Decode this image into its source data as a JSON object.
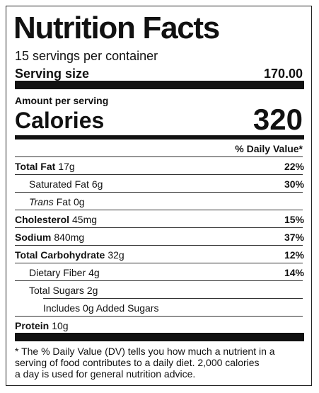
{
  "title": "Nutrition Facts",
  "servings": "15 servings per container",
  "serving_size": {
    "label": "Serving size",
    "value": "170.00"
  },
  "amount_per_serving": "Amount per serving",
  "calories": {
    "label": "Calories",
    "value": "320"
  },
  "daily_value_header": "% Daily Value*",
  "nutrients": [
    {
      "label": "Total Fat",
      "amount": "17g",
      "dv": "22%"
    },
    {
      "label": "Saturated Fat",
      "amount": "6g",
      "dv": "30%"
    },
    {
      "label_italic": "Trans",
      "label": "Fat",
      "amount": "0g"
    },
    {
      "label": "Cholesterol",
      "amount": "45mg",
      "dv": "15%"
    },
    {
      "label": "Sodium",
      "amount": "840mg",
      "dv": "37%"
    },
    {
      "label": "Total Carbohydrate",
      "amount": "32g",
      "dv": "12%"
    },
    {
      "label": "Dietary Fiber",
      "amount": "4g",
      "dv": "14%"
    },
    {
      "label": "Total Sugars",
      "amount": "2g"
    },
    {
      "label": "Includes 0g Added Sugars"
    },
    {
      "label": "Protein",
      "amount": "10g"
    }
  ],
  "footnote": [
    "* The % Daily Value (DV) tells you how much a nutrient in a",
    "serving of food contributes to a daily diet. 2,000 calories",
    "a day is used for general nutrition advice."
  ]
}
